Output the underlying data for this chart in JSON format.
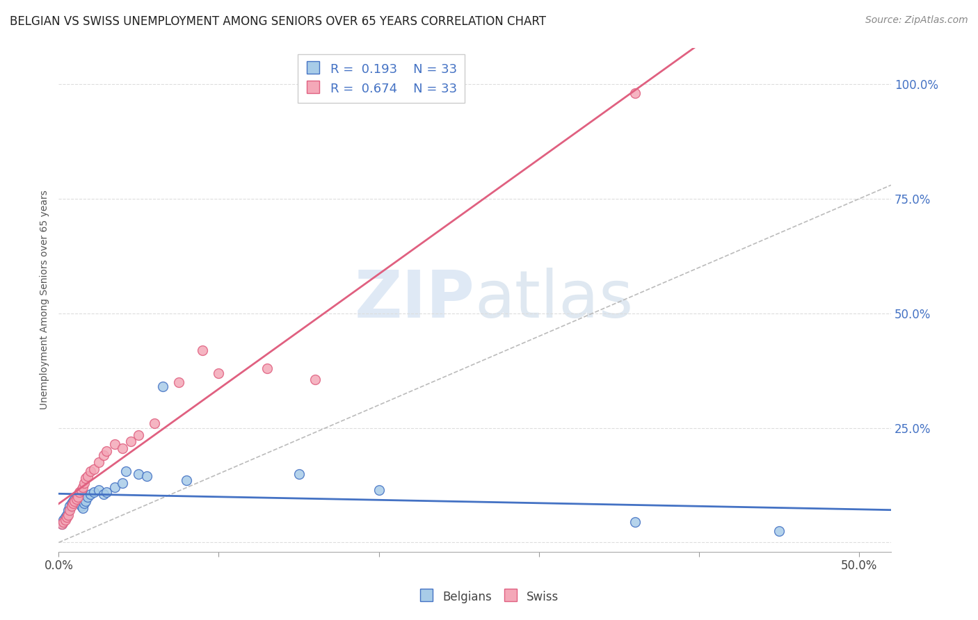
{
  "title": "BELGIAN VS SWISS UNEMPLOYMENT AMONG SENIORS OVER 65 YEARS CORRELATION CHART",
  "source": "Source: ZipAtlas.com",
  "ylabel": "Unemployment Among Seniors over 65 years",
  "xlim": [
    0.0,
    0.52
  ],
  "ylim": [
    -0.02,
    1.08
  ],
  "legend_label1": "Belgians",
  "legend_label2": "Swiss",
  "color_belgian": "#a8cce8",
  "color_swiss": "#f4a8b8",
  "color_line_belgian": "#4472C4",
  "color_line_swiss": "#e06080",
  "color_diag": "#bbbbbb",
  "color_ticks_right": "#4472C4",
  "belgians_x": [
    0.002,
    0.003,
    0.004,
    0.005,
    0.006,
    0.007,
    0.008,
    0.009,
    0.01,
    0.011,
    0.012,
    0.013,
    0.014,
    0.015,
    0.016,
    0.017,
    0.018,
    0.02,
    0.022,
    0.025,
    0.028,
    0.03,
    0.035,
    0.04,
    0.042,
    0.05,
    0.055,
    0.065,
    0.08,
    0.15,
    0.2,
    0.36,
    0.45
  ],
  "belgians_y": [
    0.04,
    0.05,
    0.055,
    0.06,
    0.07,
    0.08,
    0.085,
    0.09,
    0.095,
    0.1,
    0.095,
    0.085,
    0.08,
    0.075,
    0.085,
    0.09,
    0.1,
    0.105,
    0.11,
    0.115,
    0.105,
    0.11,
    0.12,
    0.13,
    0.155,
    0.15,
    0.145,
    0.34,
    0.135,
    0.15,
    0.115,
    0.045,
    0.025
  ],
  "swiss_x": [
    0.002,
    0.003,
    0.004,
    0.005,
    0.006,
    0.007,
    0.008,
    0.009,
    0.01,
    0.011,
    0.012,
    0.013,
    0.014,
    0.015,
    0.016,
    0.017,
    0.018,
    0.02,
    0.022,
    0.025,
    0.028,
    0.03,
    0.035,
    0.04,
    0.045,
    0.05,
    0.06,
    0.075,
    0.09,
    0.1,
    0.13,
    0.16,
    0.36
  ],
  "swiss_y": [
    0.04,
    0.045,
    0.05,
    0.055,
    0.06,
    0.07,
    0.08,
    0.085,
    0.09,
    0.095,
    0.1,
    0.11,
    0.115,
    0.12,
    0.13,
    0.14,
    0.145,
    0.155,
    0.16,
    0.175,
    0.19,
    0.2,
    0.215,
    0.205,
    0.22,
    0.235,
    0.26,
    0.35,
    0.42,
    0.37,
    0.38,
    0.355,
    0.98
  ],
  "watermark_zip": "ZIP",
  "watermark_atlas": "atlas",
  "background_color": "#ffffff",
  "grid_color": "#dddddd",
  "legend_r_values": [
    "0.193",
    "0.674"
  ],
  "legend_n": "33"
}
